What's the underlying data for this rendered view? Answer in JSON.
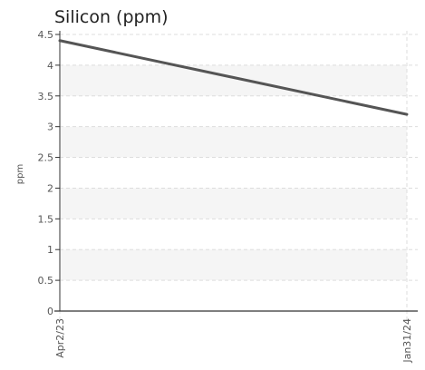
{
  "chart_data": {
    "type": "line",
    "title": "Silicon (ppm)",
    "xlabel": "",
    "ylabel": "ppm",
    "x": [
      "Apr2/23",
      "Jan31/24"
    ],
    "series": [
      {
        "values": [
          4.4,
          3.2
        ],
        "color": "#555555"
      }
    ],
    "ylim": [
      0,
      4.5
    ],
    "yticks": [
      "0",
      "0.5",
      "1",
      "1.5",
      "2",
      "2.5",
      "3",
      "3.5",
      "4",
      "4.5"
    ],
    "grid": true,
    "band_color": "#f5f5f5",
    "grid_color": "#dddddd",
    "axis_color": "#333333"
  }
}
